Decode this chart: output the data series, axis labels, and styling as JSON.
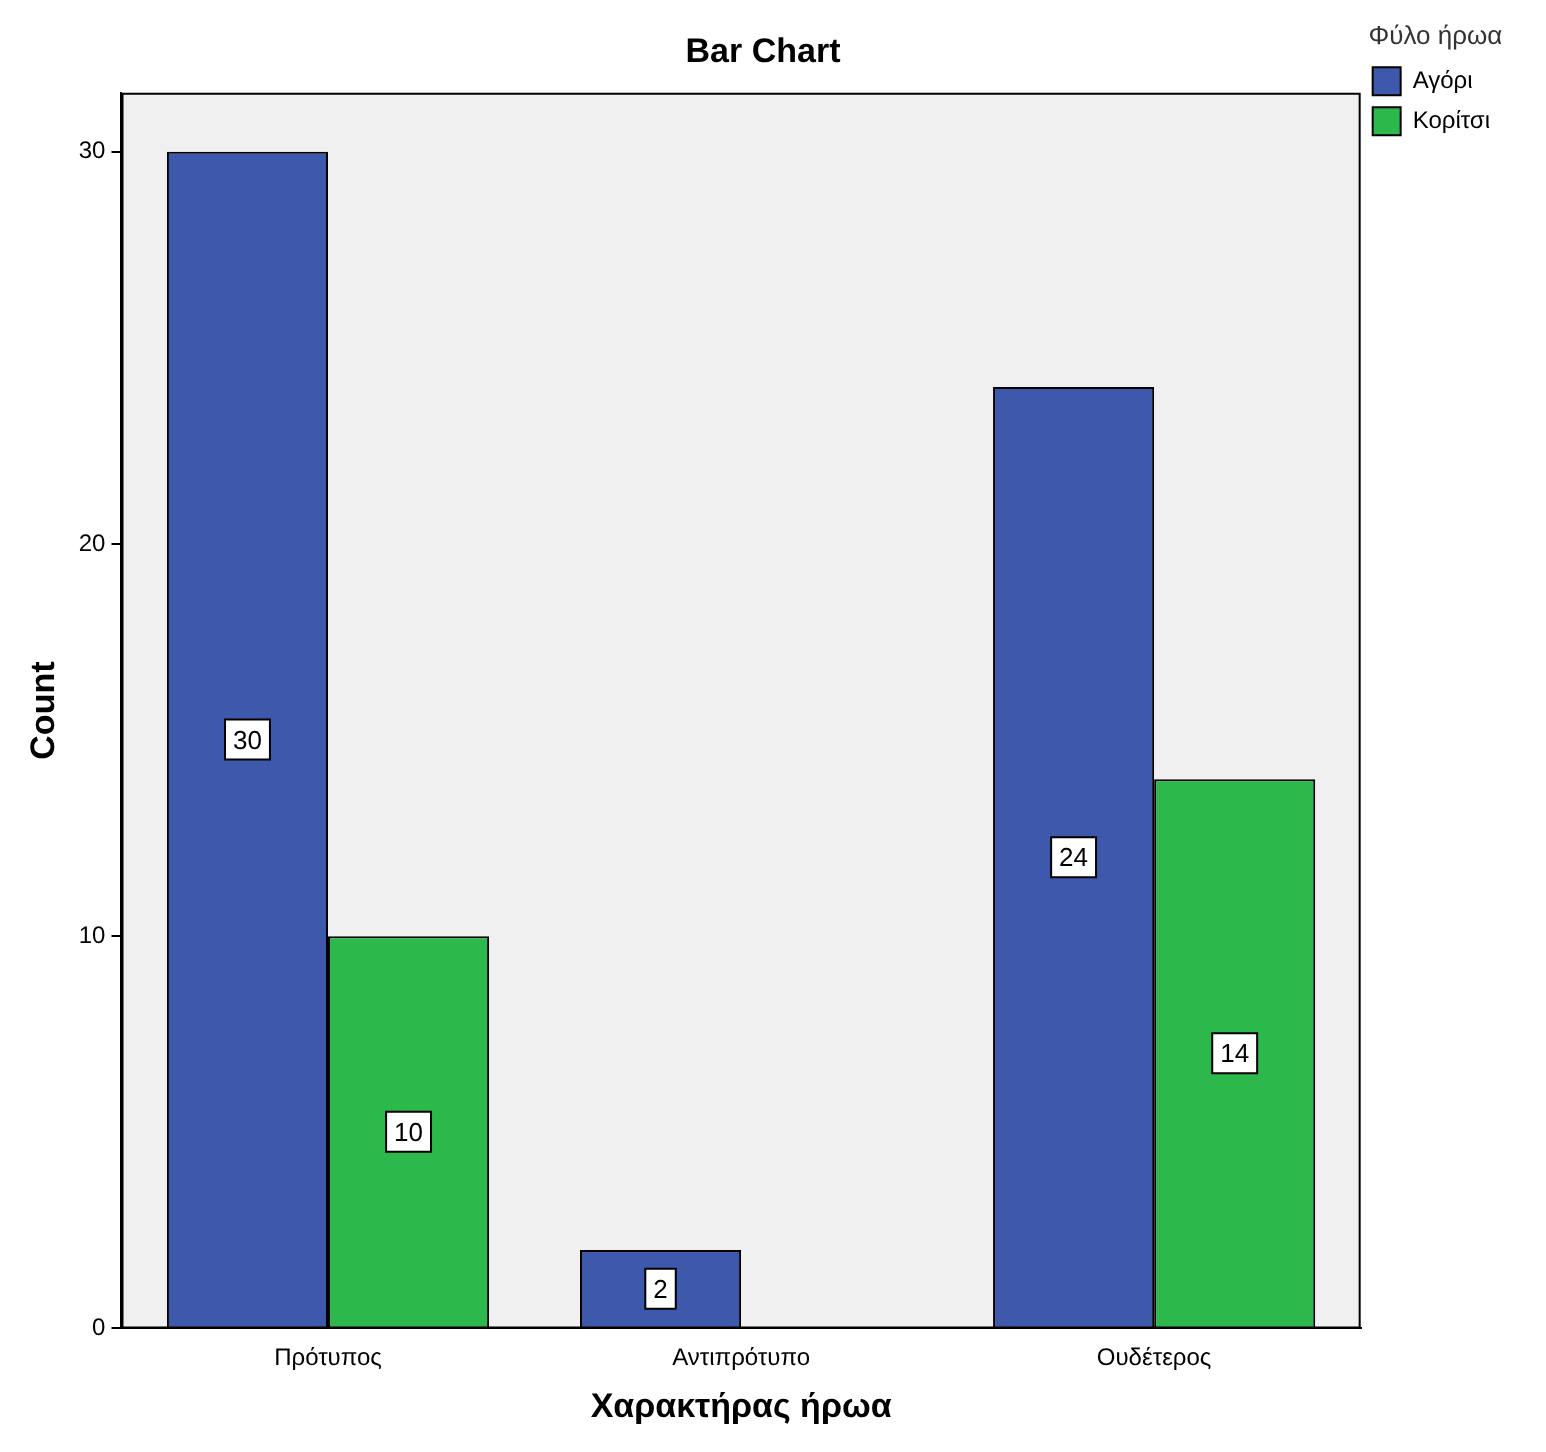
{
  "chart_data": {
    "type": "bar",
    "title": "Bar Chart",
    "xlabel": "Χαρακτήρας ήρωα",
    "ylabel": "Count",
    "legend_title": "Φύλο ήρωα",
    "categories": [
      "Πρότυπος",
      "Αντιπρότυπο",
      "Ουδέτερος"
    ],
    "series": [
      {
        "name": "Αγόρι",
        "color": "#3e58ac",
        "values": [
          30,
          2,
          24
        ]
      },
      {
        "name": "Κορίτσι",
        "color": "#2db84b",
        "values": [
          10,
          null,
          14
        ]
      }
    ],
    "ylim": [
      0,
      31.5
    ],
    "yticks": [
      0,
      10,
      20,
      30
    ],
    "grid": false,
    "legend": "top right",
    "data_labels": true
  }
}
